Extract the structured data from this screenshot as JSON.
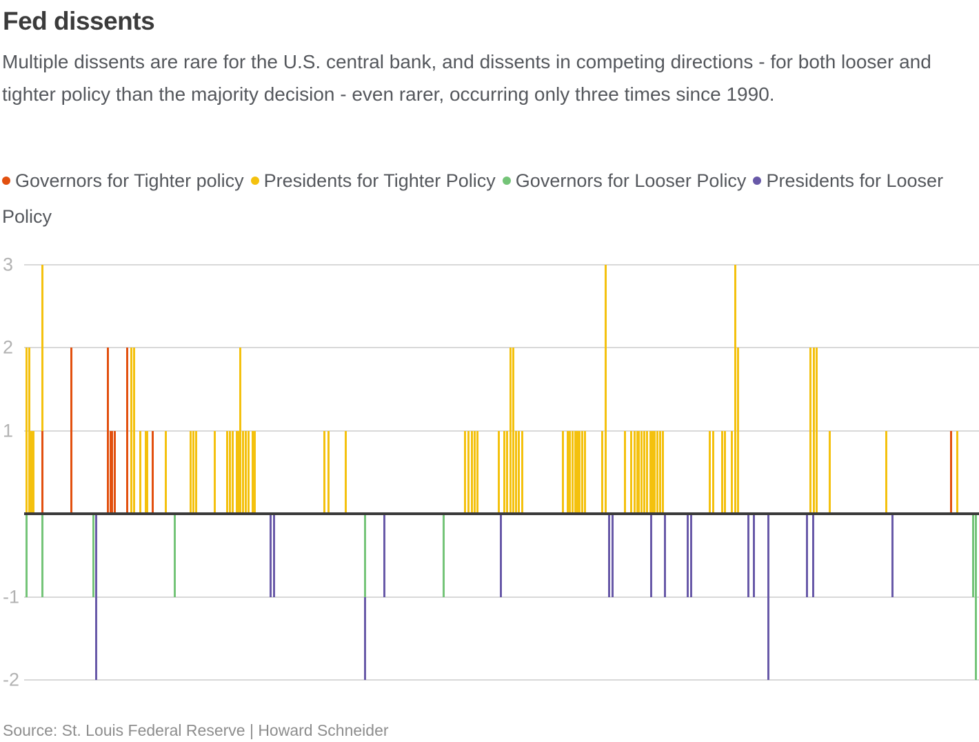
{
  "header": {
    "title": "Fed dissents",
    "subtitle": "Multiple dissents are rare for the U.S. central bank, and dissents in competing directions - for both looser and tighter policy than the majority decision - even rarer, occurring only three times since 1990."
  },
  "source": "Source: St. Louis Federal Reserve | Howard Schneider",
  "legend": [
    {
      "series": "gov_tighter",
      "label": "Governors for Tighter policy",
      "color": "#e2500f"
    },
    {
      "series": "pres_tighter",
      "label": "Presidents for Tighter Policy",
      "color": "#f4c10e"
    },
    {
      "series": "gov_looser",
      "label": "Governors for Looser Policy",
      "color": "#74c478"
    },
    {
      "series": "pres_looser",
      "label": "Presidents for Looser Policy",
      "color": "#6859a8"
    }
  ],
  "chart_data": {
    "type": "bar",
    "title": "Fed dissents",
    "xlabel": "",
    "ylabel": "",
    "ylim": [
      -2,
      3
    ],
    "yticks": [
      3,
      2,
      1,
      -1,
      -2
    ],
    "grid": true,
    "legend_position": "top",
    "x_axis": {
      "tick_labels_visible": false,
      "meaning": "FOMC meetings since 1990 (unlabeled time axis)",
      "x_units": "percent of plot width 0-100"
    },
    "series_colors": {
      "gov_tighter": "#e2500f",
      "pres_tighter": "#f4c10e",
      "gov_looser": "#74c478",
      "pres_looser": "#6859a8"
    },
    "bars": [
      {
        "x": 0.22,
        "s": "pres_tighter",
        "v": 2
      },
      {
        "x": 0.51,
        "s": "pres_tighter",
        "v": 2
      },
      {
        "x": 0.76,
        "s": "pres_tighter",
        "v": 1
      },
      {
        "x": 0.97,
        "s": "pres_tighter",
        "v": 1
      },
      {
        "x": 1.88,
        "s": "gov_tighter",
        "v": 1
      },
      {
        "x": 1.88,
        "s": "pres_tighter",
        "v": 2,
        "b": 1
      },
      {
        "x": 4.98,
        "s": "gov_tighter",
        "v": 2
      },
      {
        "x": 8.74,
        "s": "gov_tighter",
        "v": 2
      },
      {
        "x": 9.03,
        "s": "gov_tighter",
        "v": 1
      },
      {
        "x": 9.24,
        "s": "gov_tighter",
        "v": 1
      },
      {
        "x": 9.46,
        "s": "gov_tighter",
        "v": 1
      },
      {
        "x": 10.76,
        "s": "gov_tighter",
        "v": 2
      },
      {
        "x": 11.26,
        "s": "pres_tighter",
        "v": 2
      },
      {
        "x": 11.55,
        "s": "pres_tighter",
        "v": 2
      },
      {
        "x": 12.13,
        "s": "pres_tighter",
        "v": 1
      },
      {
        "x": 12.71,
        "s": "pres_tighter",
        "v": 1
      },
      {
        "x": 12.92,
        "s": "pres_tighter",
        "v": 1
      },
      {
        "x": 13.5,
        "s": "gov_tighter",
        "v": 1
      },
      {
        "x": 14.87,
        "s": "pres_tighter",
        "v": 1
      },
      {
        "x": 17.47,
        "s": "pres_tighter",
        "v": 1
      },
      {
        "x": 17.76,
        "s": "pres_tighter",
        "v": 1
      },
      {
        "x": 18.05,
        "s": "pres_tighter",
        "v": 1
      },
      {
        "x": 19.93,
        "s": "pres_tighter",
        "v": 1
      },
      {
        "x": 21.23,
        "s": "pres_tighter",
        "v": 1
      },
      {
        "x": 21.52,
        "s": "pres_tighter",
        "v": 1
      },
      {
        "x": 21.81,
        "s": "pres_tighter",
        "v": 1
      },
      {
        "x": 22.24,
        "s": "pres_tighter",
        "v": 1
      },
      {
        "x": 22.45,
        "s": "pres_tighter",
        "v": 1
      },
      {
        "x": 22.67,
        "s": "pres_tighter",
        "v": 2
      },
      {
        "x": 22.96,
        "s": "pres_tighter",
        "v": 1
      },
      {
        "x": 23.18,
        "s": "pres_tighter",
        "v": 1
      },
      {
        "x": 23.47,
        "s": "pres_tighter",
        "v": 1
      },
      {
        "x": 23.9,
        "s": "pres_tighter",
        "v": 1
      },
      {
        "x": 24.12,
        "s": "pres_tighter",
        "v": 1
      },
      {
        "x": 31.48,
        "s": "pres_tighter",
        "v": 1
      },
      {
        "x": 31.91,
        "s": "pres_tighter",
        "v": 1
      },
      {
        "x": 33.65,
        "s": "pres_tighter",
        "v": 1
      },
      {
        "x": 46.14,
        "s": "pres_tighter",
        "v": 1
      },
      {
        "x": 46.5,
        "s": "pres_tighter",
        "v": 1
      },
      {
        "x": 46.86,
        "s": "pres_tighter",
        "v": 1
      },
      {
        "x": 47.15,
        "s": "pres_tighter",
        "v": 1
      },
      {
        "x": 47.44,
        "s": "pres_tighter",
        "v": 1
      },
      {
        "x": 49.68,
        "s": "pres_tighter",
        "v": 1
      },
      {
        "x": 50.32,
        "s": "pres_tighter",
        "v": 1
      },
      {
        "x": 50.61,
        "s": "pres_tighter",
        "v": 1
      },
      {
        "x": 50.97,
        "s": "pres_tighter",
        "v": 2
      },
      {
        "x": 51.26,
        "s": "pres_tighter",
        "v": 2
      },
      {
        "x": 51.55,
        "s": "pres_tighter",
        "v": 1
      },
      {
        "x": 51.84,
        "s": "pres_tighter",
        "v": 1
      },
      {
        "x": 52.13,
        "s": "pres_tighter",
        "v": 1
      },
      {
        "x": 56.39,
        "s": "pres_tighter",
        "v": 1
      },
      {
        "x": 56.9,
        "s": "pres_tighter",
        "v": 1
      },
      {
        "x": 57.18,
        "s": "pres_tighter",
        "v": 1
      },
      {
        "x": 57.47,
        "s": "pres_tighter",
        "v": 1
      },
      {
        "x": 57.69,
        "s": "pres_tighter",
        "v": 1
      },
      {
        "x": 57.91,
        "s": "pres_tighter",
        "v": 1
      },
      {
        "x": 58.19,
        "s": "pres_tighter",
        "v": 1
      },
      {
        "x": 58.48,
        "s": "pres_tighter",
        "v": 1
      },
      {
        "x": 58.77,
        "s": "pres_tighter",
        "v": 1
      },
      {
        "x": 60.51,
        "s": "pres_tighter",
        "v": 1
      },
      {
        "x": 60.87,
        "s": "pres_tighter",
        "v": 3
      },
      {
        "x": 62.96,
        "s": "pres_tighter",
        "v": 1
      },
      {
        "x": 63.61,
        "s": "pres_tighter",
        "v": 1
      },
      {
        "x": 63.9,
        "s": "pres_tighter",
        "v": 1
      },
      {
        "x": 64.19,
        "s": "pres_tighter",
        "v": 1
      },
      {
        "x": 64.4,
        "s": "pres_tighter",
        "v": 1
      },
      {
        "x": 64.69,
        "s": "pres_tighter",
        "v": 1
      },
      {
        "x": 64.98,
        "s": "pres_tighter",
        "v": 1
      },
      {
        "x": 65.27,
        "s": "pres_tighter",
        "v": 1
      },
      {
        "x": 65.56,
        "s": "pres_tighter",
        "v": 1
      },
      {
        "x": 65.78,
        "s": "pres_tighter",
        "v": 1
      },
      {
        "x": 66.06,
        "s": "pres_tighter",
        "v": 1
      },
      {
        "x": 66.35,
        "s": "pres_tighter",
        "v": 1
      },
      {
        "x": 66.64,
        "s": "pres_tighter",
        "v": 1
      },
      {
        "x": 66.86,
        "s": "pres_tighter",
        "v": 1
      },
      {
        "x": 71.84,
        "s": "pres_tighter",
        "v": 1
      },
      {
        "x": 72.13,
        "s": "pres_tighter",
        "v": 1
      },
      {
        "x": 73.07,
        "s": "pres_tighter",
        "v": 1
      },
      {
        "x": 73.36,
        "s": "pres_tighter",
        "v": 1
      },
      {
        "x": 74.15,
        "s": "pres_tighter",
        "v": 1
      },
      {
        "x": 74.51,
        "s": "pres_tighter",
        "v": 3
      },
      {
        "x": 74.8,
        "s": "pres_tighter",
        "v": 2
      },
      {
        "x": 82.38,
        "s": "pres_tighter",
        "v": 2
      },
      {
        "x": 82.74,
        "s": "pres_tighter",
        "v": 2
      },
      {
        "x": 83.03,
        "s": "pres_tighter",
        "v": 2
      },
      {
        "x": 84.4,
        "s": "pres_tighter",
        "v": 1
      },
      {
        "x": 90.32,
        "s": "pres_tighter",
        "v": 1
      },
      {
        "x": 97.11,
        "s": "gov_tighter",
        "v": 1
      },
      {
        "x": 97.76,
        "s": "pres_tighter",
        "v": 1
      },
      {
        "x": 0.22,
        "s": "gov_looser",
        "v": -1
      },
      {
        "x": 1.88,
        "s": "gov_looser",
        "v": -1
      },
      {
        "x": 7.29,
        "s": "gov_looser",
        "v": -1
      },
      {
        "x": 7.58,
        "s": "pres_looser",
        "v": -2
      },
      {
        "x": 15.81,
        "s": "gov_looser",
        "v": -1
      },
      {
        "x": 25.78,
        "s": "pres_looser",
        "v": -1
      },
      {
        "x": 26.14,
        "s": "pres_looser",
        "v": -1
      },
      {
        "x": 35.67,
        "s": "gov_looser",
        "v": -1
      },
      {
        "x": 35.67,
        "s": "pres_looser",
        "v": -1,
        "b": -1
      },
      {
        "x": 37.69,
        "s": "pres_looser",
        "v": -1
      },
      {
        "x": 43.9,
        "s": "gov_looser",
        "v": -1
      },
      {
        "x": 49.96,
        "s": "pres_looser",
        "v": -1
      },
      {
        "x": 61.23,
        "s": "pres_looser",
        "v": -1
      },
      {
        "x": 61.66,
        "s": "pres_looser",
        "v": -1
      },
      {
        "x": 65.7,
        "s": "pres_looser",
        "v": -1
      },
      {
        "x": 67.08,
        "s": "pres_looser",
        "v": -1
      },
      {
        "x": 69.46,
        "s": "pres_looser",
        "v": -1
      },
      {
        "x": 69.89,
        "s": "pres_looser",
        "v": -1
      },
      {
        "x": 75.88,
        "s": "pres_looser",
        "v": -1
      },
      {
        "x": 76.39,
        "s": "pres_looser",
        "v": -1
      },
      {
        "x": 77.91,
        "s": "pres_looser",
        "v": -2
      },
      {
        "x": 82.02,
        "s": "pres_looser",
        "v": -1
      },
      {
        "x": 82.67,
        "s": "pres_looser",
        "v": -1
      },
      {
        "x": 90.97,
        "s": "pres_looser",
        "v": -1
      },
      {
        "x": 99.42,
        "s": "gov_looser",
        "v": -1
      },
      {
        "x": 99.64,
        "s": "gov_looser",
        "v": -2
      }
    ]
  }
}
